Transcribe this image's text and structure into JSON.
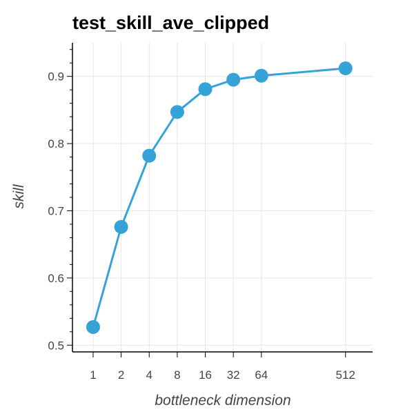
{
  "chart_data": {
    "type": "line",
    "title": "test_skill_ave_clipped",
    "xlabel": "bottleneck dimension",
    "ylabel": "skill",
    "x_scale": "log2",
    "xlim": [
      0.6,
      1000
    ],
    "ylim": [
      0.49,
      0.95
    ],
    "x_ticks": [
      1,
      2,
      4,
      8,
      16,
      32,
      64,
      512
    ],
    "x_tick_labels": [
      "1",
      "2",
      "4",
      "8",
      "16",
      "32",
      "64",
      "512"
    ],
    "y_ticks": [
      0.5,
      0.6,
      0.7,
      0.8,
      0.9
    ],
    "y_tick_labels": [
      "0.5",
      "0.6",
      "0.7",
      "0.8",
      "0.9"
    ],
    "grid": true,
    "series": [
      {
        "color": "#35a2d8",
        "x": [
          1,
          2,
          4,
          8,
          16,
          32,
          64,
          512
        ],
        "y": [
          0.527,
          0.676,
          0.782,
          0.847,
          0.881,
          0.895,
          0.901,
          0.912
        ]
      }
    ]
  }
}
